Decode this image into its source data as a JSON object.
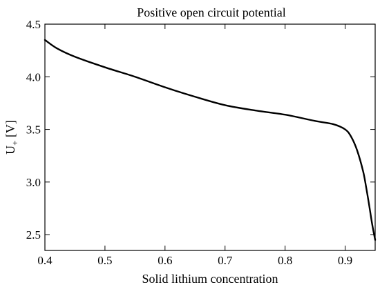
{
  "chart_data": {
    "type": "line",
    "title": "Positive open circuit potential",
    "xlabel": "Solid lithium concentration",
    "ylabel": {
      "main": "U",
      "sub": "+",
      "unit": " [V]"
    },
    "xlim": [
      0.4,
      0.95
    ],
    "ylim": [
      2.35,
      4.5
    ],
    "xticks": [
      0.4,
      0.5,
      0.6,
      0.7,
      0.8,
      0.9
    ],
    "xtick_labels": [
      "0.4",
      "0.5",
      "0.6",
      "0.7",
      "0.8",
      "0.9"
    ],
    "yticks": [
      2.5,
      3.0,
      3.5,
      4.0,
      4.5
    ],
    "ytick_labels": [
      "2.5",
      "3.0",
      "3.5",
      "4.0",
      "4.5"
    ],
    "grid": false,
    "series": [
      {
        "x": [
          0.4,
          0.42,
          0.45,
          0.5,
          0.55,
          0.6,
          0.65,
          0.7,
          0.75,
          0.8,
          0.85,
          0.88,
          0.9,
          0.91,
          0.92,
          0.93,
          0.935,
          0.94,
          0.945,
          0.95
        ],
        "y": [
          4.35,
          4.27,
          4.19,
          4.09,
          4.0,
          3.9,
          3.81,
          3.73,
          3.68,
          3.64,
          3.58,
          3.55,
          3.5,
          3.43,
          3.3,
          3.1,
          2.95,
          2.78,
          2.6,
          2.45
        ]
      }
    ]
  }
}
